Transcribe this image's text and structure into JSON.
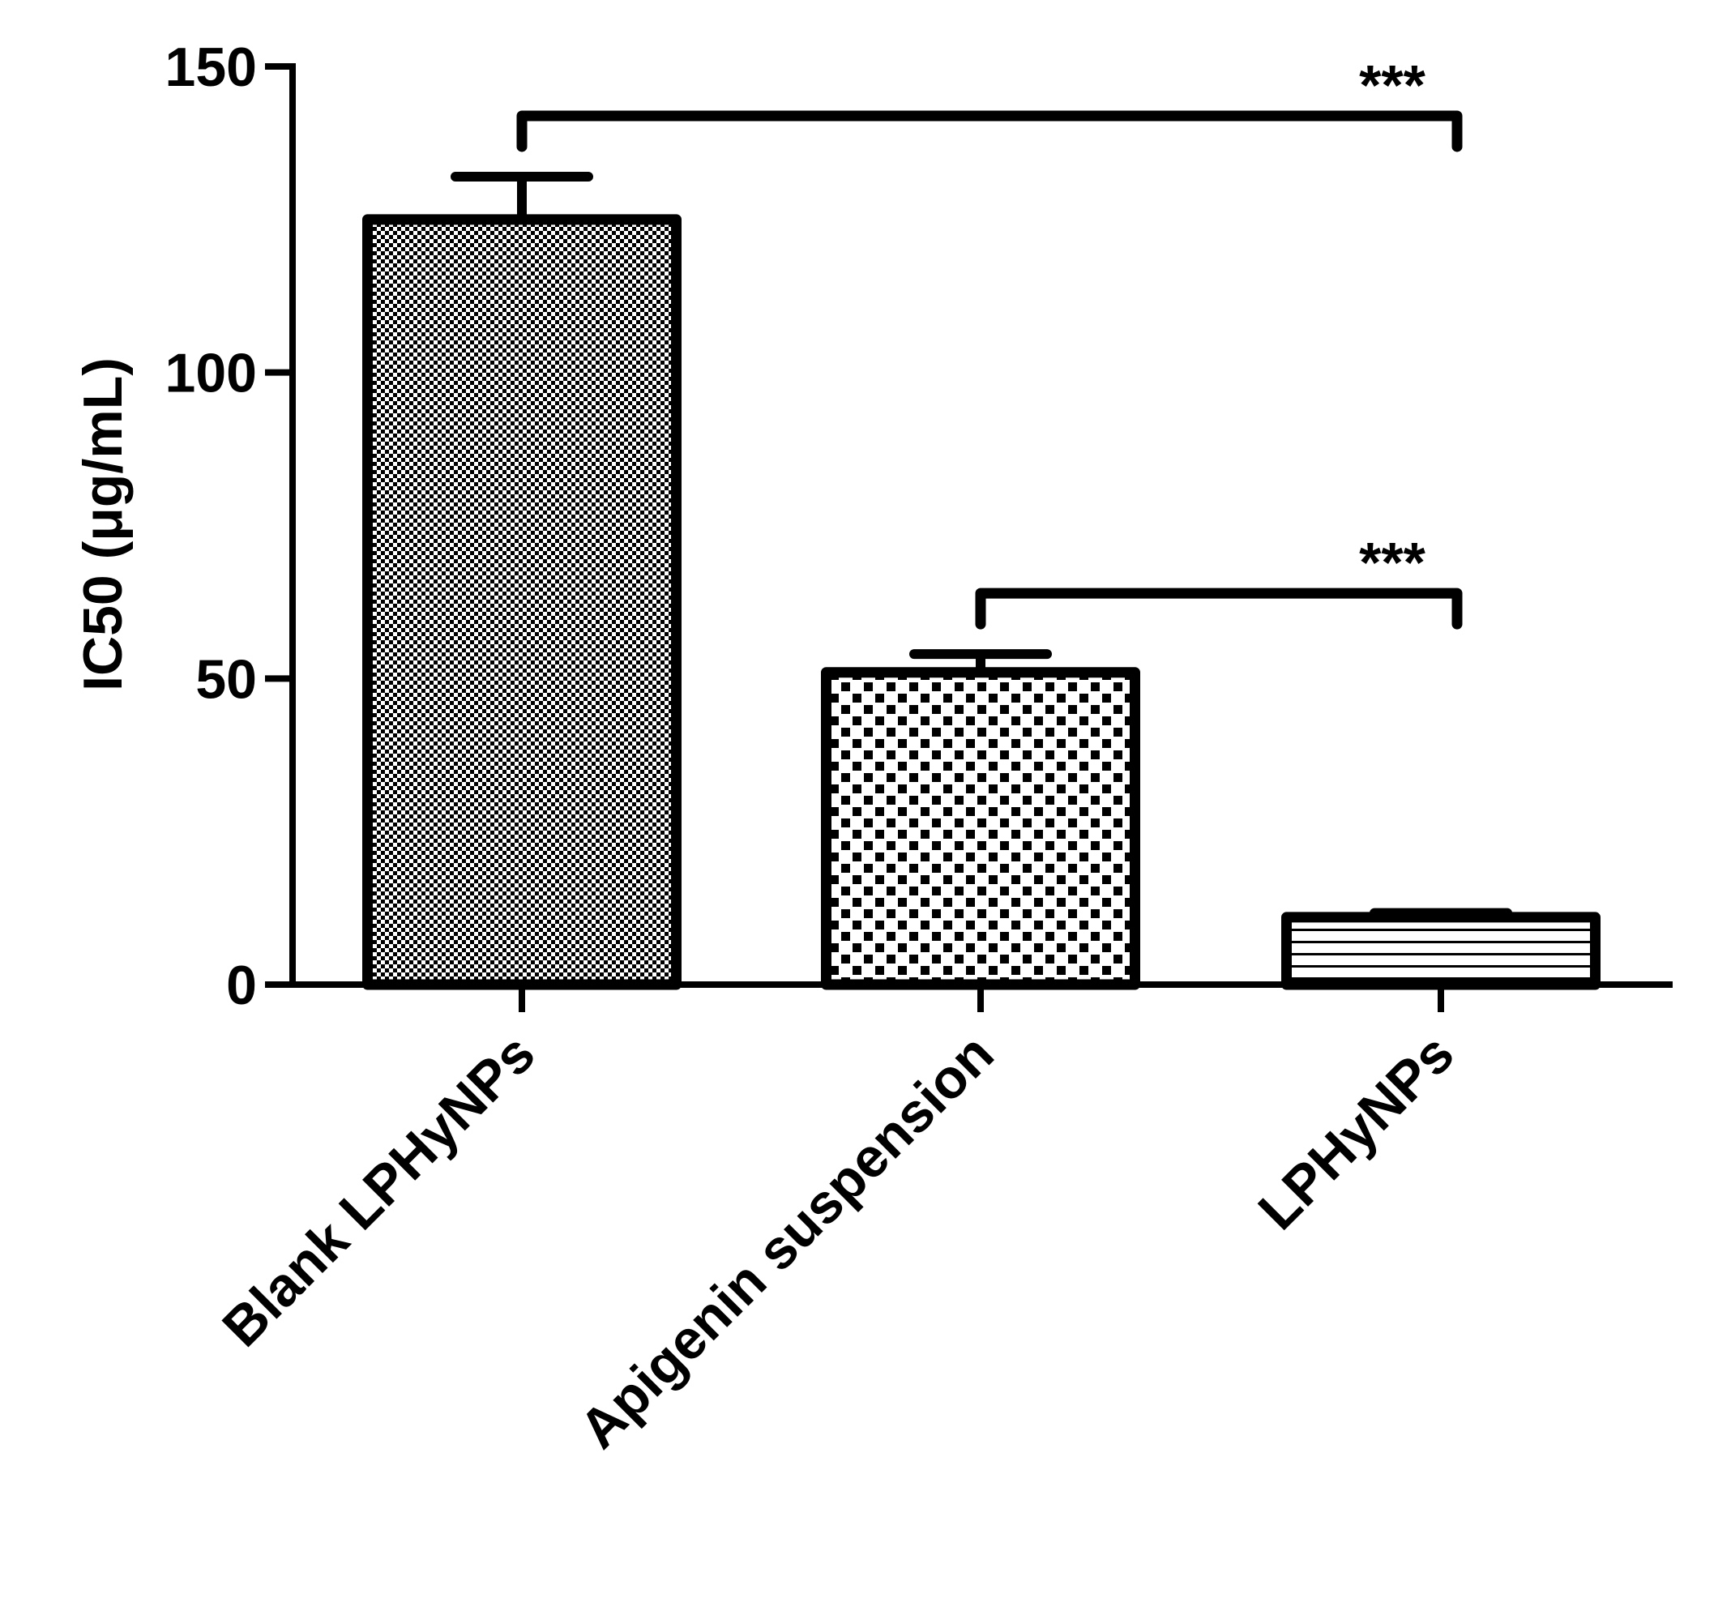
{
  "chart_data": {
    "type": "bar",
    "categories": [
      "Blank LPHyNPs",
      "Apigenin suspension",
      "LPHyNPs"
    ],
    "values": [
      125,
      51,
      11
    ],
    "errors": [
      7,
      3,
      0.7
    ],
    "color": "#000000",
    "patterns": [
      "fine-checker",
      "checker",
      "horizontal-lines"
    ],
    "y_label": "IC50 (μg/mL)",
    "ylim": [
      0,
      150
    ],
    "yticks": [
      0,
      50,
      100,
      150
    ],
    "grid": false,
    "annotations": [
      {
        "text": "***",
        "between": [
          0,
          2
        ]
      },
      {
        "text": "***",
        "between": [
          1,
          2
        ]
      }
    ]
  }
}
